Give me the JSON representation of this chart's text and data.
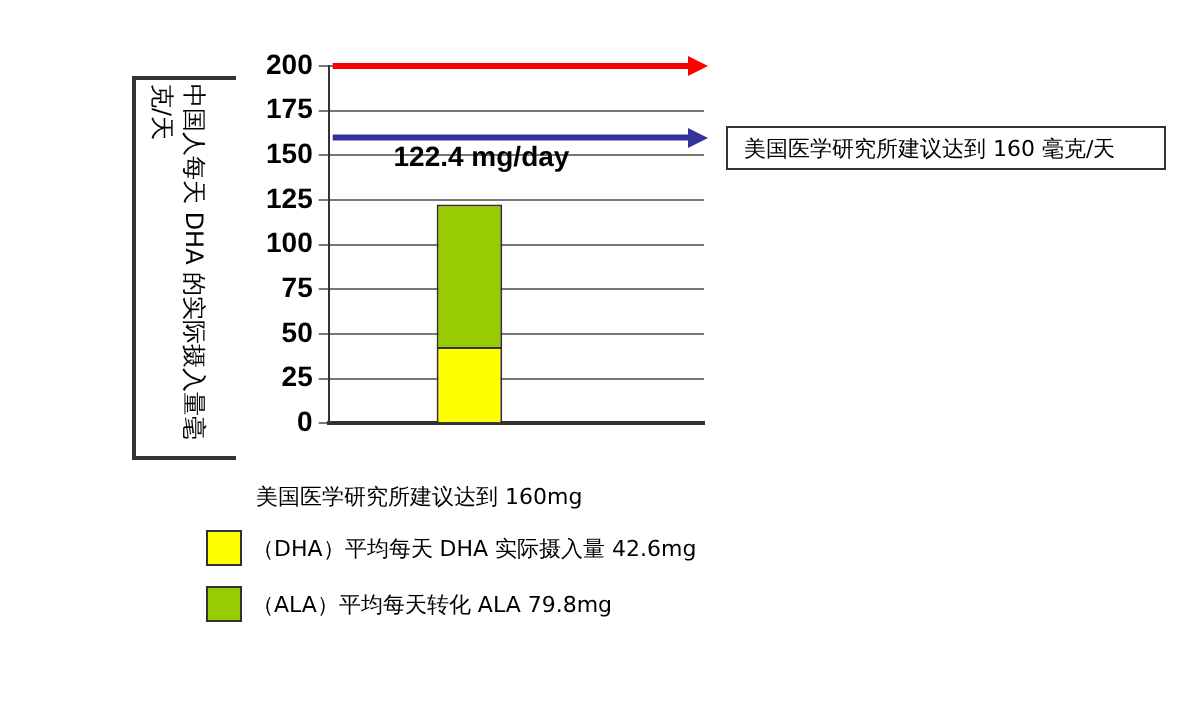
{
  "chart_data": {
    "type": "bar",
    "stacked": true,
    "ylabel": "中国人每天 DHA 的实际摄入量毫克/天",
    "categories": [
      null,
      null,
      null,
      null
    ],
    "series": [
      {
        "name": "（DHA）平均每天 DHA 实际摄入量 42.6mg",
        "color": "#ffff00",
        "values": [
          null,
          42.6,
          null,
          null
        ]
      },
      {
        "name": "（ALA）平均每天转化 ALA 79.8mg",
        "color": "#99cc00",
        "values": [
          null,
          79.8,
          null,
          null
        ]
      }
    ],
    "totals": [
      null,
      "122.4 mg/day",
      null,
      null
    ],
    "ylim": [
      0,
      200
    ],
    "yticks": [
      0,
      25,
      50,
      75,
      100,
      125,
      150,
      175,
      200
    ],
    "ref_lines": [
      {
        "axis": "y",
        "value": 200,
        "color": "#ff0000"
      },
      {
        "axis": "y",
        "value": 160,
        "color": "#333399",
        "label": "美国医学研究所建议达到 160 毫克/天"
      }
    ],
    "annotations": [
      "美国医学研究所建议达到 160mg"
    ],
    "grid": "y",
    "legend": "bottom"
  }
}
